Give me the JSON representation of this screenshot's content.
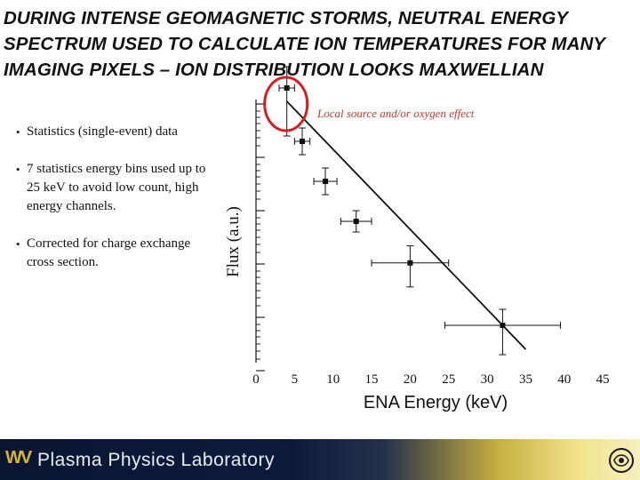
{
  "slide": {
    "title": "DURING INTENSE GEOMAGNETIC STORMS, NEUTRAL ENERGY SPECTRUM USED TO CALCULATE ION TEMPERATURES FOR MANY IMAGING PIXELS – ION DISTRIBUTION LOOKS MAXWELLIAN",
    "bullets": [
      "Statistics (single-event) data",
      "7 statistics energy bins used up to 25 keV to avoid low count, high energy channels.",
      "Corrected for charge exchange cross section."
    ],
    "annotation": "Local source and/or oxygen effect",
    "footer": {
      "logo": "WV",
      "text": "Plasma Physics Laboratory",
      "emblem_icon": "lab-emblem-icon"
    }
  },
  "colors": {
    "title": "#111111",
    "annotation": "#c0392b",
    "highlight_circle": "#d21f1f",
    "footer_dark": "#0c1a3a",
    "footer_gold": "#d8b530"
  },
  "chart_data": {
    "type": "scatter",
    "xlabel": "ENA Energy (keV)",
    "ylabel": "Flux (a.u.)",
    "xlim": [
      0,
      45
    ],
    "x_ticks": [
      0,
      5,
      10,
      15,
      20,
      25,
      30,
      35,
      40,
      45
    ],
    "y_scale": "log",
    "y_tick_labels": false,
    "series": [
      {
        "points": [
          {
            "x": 4,
            "y": 3.3,
            "xerr": 1,
            "yerr_up": 0.4,
            "yerr_down": 0.9
          },
          {
            "x": 6,
            "y": 2.3,
            "xerr": 1,
            "yerr_up": 0.25,
            "yerr_down": 0.25
          },
          {
            "x": 9,
            "y": 1.55,
            "xerr": 1.5,
            "yerr_up": 0.25,
            "yerr_down": 0.25
          },
          {
            "x": 13,
            "y": 0.8,
            "xerr": 2,
            "yerr_up": 0.2,
            "yerr_down": 0.2
          },
          {
            "x": 20,
            "y": 0.02,
            "xerr": 5,
            "yerr_up": 0.32,
            "yerr_down": 0.45
          },
          {
            "x": 32,
            "y": -1.15,
            "xerr": 7.5,
            "yerr_up": 0.3,
            "yerr_down": 0.55
          }
        ]
      }
    ],
    "fit_line": {
      "x": [
        4,
        35
      ],
      "y": [
        3.05,
        -1.6
      ]
    },
    "highlight": {
      "point_index": 0
    }
  }
}
